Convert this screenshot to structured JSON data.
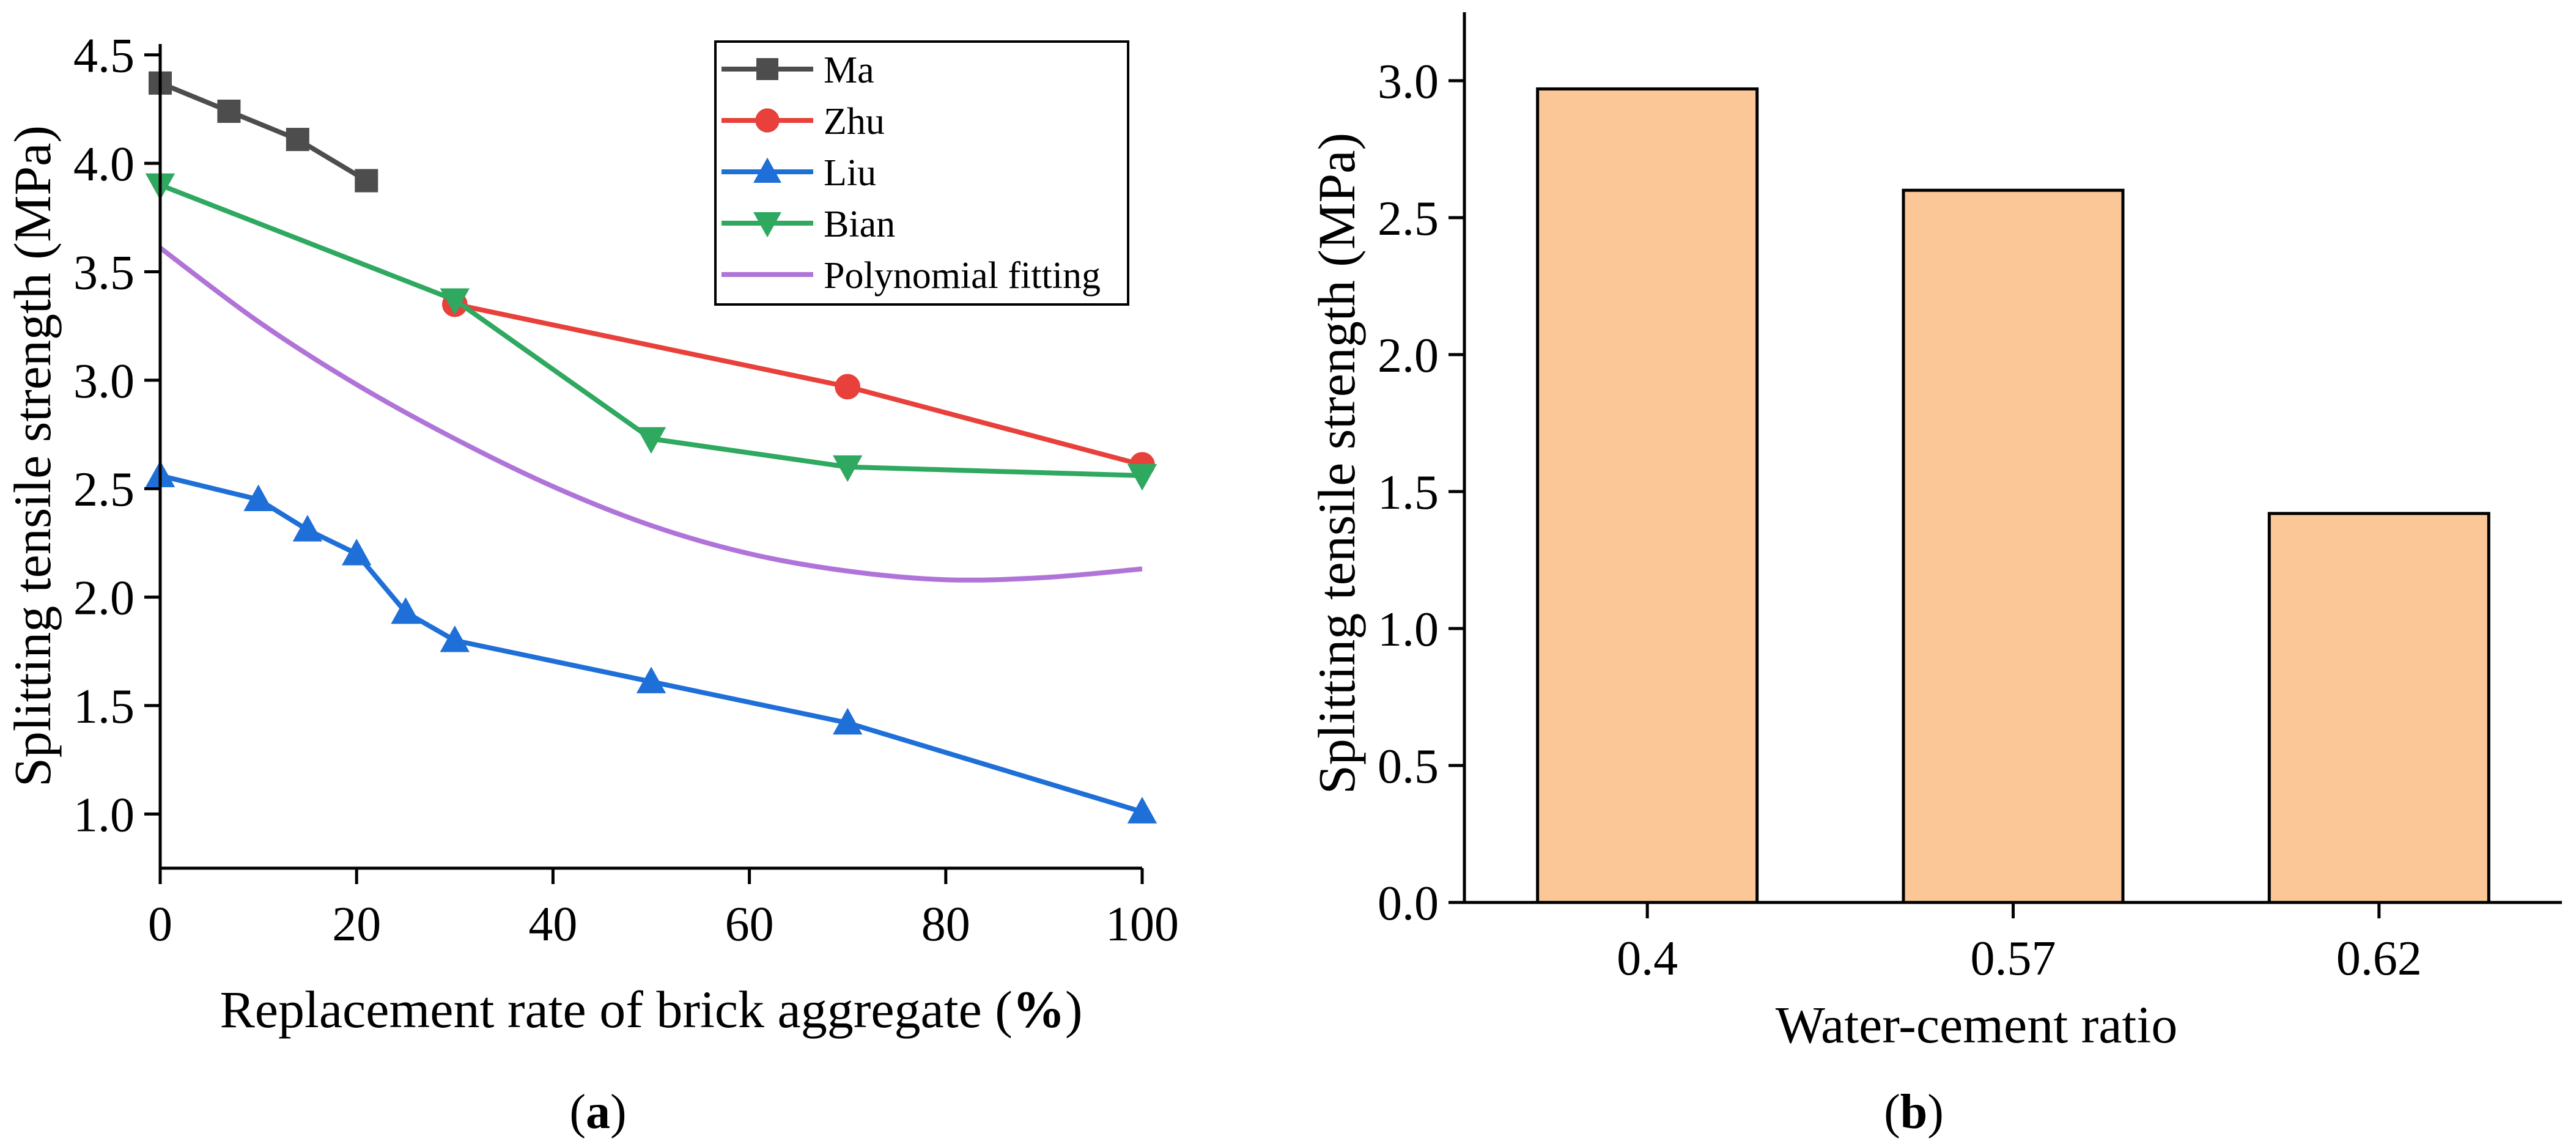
{
  "panel_labels": {
    "a_open": "(",
    "a_letter": "a",
    "a_close": ")",
    "b_open": "(",
    "b_letter": "b",
    "b_close": ")"
  },
  "chart_data": [
    {
      "type": "line",
      "panel": "a",
      "xlabel_main": "Replacement rate of brick aggregate (",
      "xlabel_unit": "%",
      "xlabel_close": ")",
      "ylabel": "Splitting tensile strength (MPa)",
      "xlim": [
        0,
        100
      ],
      "ylim": [
        0.75,
        4.55
      ],
      "xticks": [
        0,
        20,
        40,
        60,
        80,
        100
      ],
      "xtick_labels": [
        "0",
        "20",
        "40",
        "60",
        "80",
        "100"
      ],
      "yticks": [
        1.0,
        1.5,
        2.0,
        2.5,
        3.0,
        3.5,
        4.0,
        4.5
      ],
      "ytick_labels": [
        "1.0",
        "1.5",
        "2.0",
        "2.5",
        "3.0",
        "3.5",
        "4.0",
        "4.5"
      ],
      "legend_position": "top-right",
      "series": [
        {
          "name": "Ma",
          "color": "#4d4d4d",
          "marker": "square",
          "x": [
            0,
            7,
            14,
            21
          ],
          "y": [
            4.37,
            4.24,
            4.11,
            3.92
          ]
        },
        {
          "name": "Zhu",
          "color": "#e8403a",
          "marker": "circle",
          "x": [
            30,
            70,
            100
          ],
          "y": [
            3.35,
            2.97,
            2.61
          ]
        },
        {
          "name": "Liu",
          "color": "#1f6fd8",
          "marker": "triangle-up",
          "x": [
            0,
            10,
            15,
            20,
            25,
            30,
            50,
            70,
            100
          ],
          "y": [
            2.56,
            2.45,
            2.31,
            2.2,
            1.93,
            1.8,
            1.61,
            1.42,
            1.01
          ]
        },
        {
          "name": "Bian",
          "color": "#2fa860",
          "marker": "triangle-down",
          "x": [
            0,
            30,
            50,
            70,
            100
          ],
          "y": [
            3.9,
            3.37,
            2.73,
            2.6,
            2.56
          ]
        },
        {
          "name": "Polynomial fitting",
          "color": "#b074d9",
          "marker": "none",
          "x": [
            0,
            10,
            20,
            30,
            40,
            50,
            60,
            70,
            80,
            90,
            100
          ],
          "y": [
            3.61,
            3.27,
            2.98,
            2.73,
            2.51,
            2.33,
            2.2,
            2.12,
            2.08,
            2.09,
            2.13
          ]
        }
      ]
    },
    {
      "type": "bar",
      "panel": "b",
      "xlabel": "Water-cement ratio",
      "ylabel": "Splitting tensile strength (MPa)",
      "categories": [
        "0.4",
        "0.57",
        "0.62"
      ],
      "values": [
        2.97,
        2.6,
        1.42
      ],
      "ylim": [
        0,
        3.25
      ],
      "yticks": [
        0,
        0.5,
        1.0,
        1.5,
        2.0,
        2.5,
        3.0
      ],
      "ytick_labels": [
        "0.0",
        "0.5",
        "1.0",
        "1.5",
        "2.0",
        "2.5",
        "3.0"
      ],
      "bar_color": "#fbc796",
      "bar_edge_color": "#000000"
    }
  ]
}
